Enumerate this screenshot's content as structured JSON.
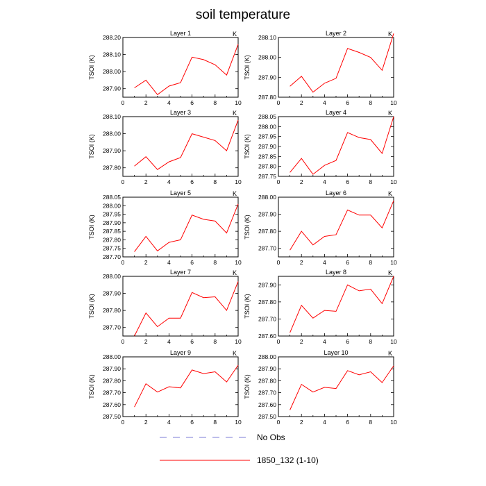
{
  "figure": {
    "title": "soil temperature"
  },
  "legend": [
    {
      "label": "No Obs",
      "color": "#7b7bd6",
      "dash": "dashed"
    },
    {
      "label": "1850_132 (1-10)",
      "color": "#ff0000",
      "dash": "solid"
    }
  ],
  "chart_data": [
    {
      "type": "line",
      "title": "Layer 1",
      "unit": "K",
      "ylabel": "TSOI  (K)",
      "xlim": [
        0,
        10
      ],
      "xticks": [
        0,
        2,
        4,
        6,
        8,
        10
      ],
      "ylim": [
        287.85,
        288.2
      ],
      "yticks": [
        "287.90",
        "288.00",
        "288.10",
        "288.20"
      ],
      "x": [
        1,
        2,
        3,
        4,
        5,
        6,
        7,
        8,
        9,
        10
      ],
      "series": [
        {
          "color": "#ff0000",
          "values": [
            287.905,
            287.95,
            287.865,
            287.915,
            287.935,
            288.085,
            288.07,
            288.04,
            287.98,
            288.16
          ]
        }
      ]
    },
    {
      "type": "line",
      "title": "Layer 2",
      "unit": "K",
      "ylabel": "TSOI  (K)",
      "xlim": [
        0,
        10
      ],
      "xticks": [
        0,
        2,
        4,
        6,
        8,
        10
      ],
      "ylim": [
        287.8,
        288.1
      ],
      "yticks": [
        "287.80",
        "287.90",
        "288.00",
        "288.10"
      ],
      "x": [
        1,
        2,
        3,
        4,
        5,
        6,
        7,
        8,
        9,
        10
      ],
      "series": [
        {
          "color": "#ff0000",
          "values": [
            287.855,
            287.905,
            287.825,
            287.87,
            287.895,
            288.045,
            288.025,
            288.0,
            287.935,
            288.12
          ]
        }
      ]
    },
    {
      "type": "line",
      "title": "Layer 3",
      "unit": "K",
      "ylabel": "TSOI  (K)",
      "xlim": [
        0,
        10
      ],
      "xticks": [
        0,
        2,
        4,
        6,
        8,
        10
      ],
      "ylim": [
        287.75,
        288.1
      ],
      "yticks": [
        "287.80",
        "287.90",
        "288.00",
        "288.10"
      ],
      "x": [
        1,
        2,
        3,
        4,
        5,
        6,
        7,
        8,
        9,
        10
      ],
      "series": [
        {
          "color": "#ff0000",
          "values": [
            287.81,
            287.865,
            287.79,
            287.835,
            287.86,
            288.0,
            287.98,
            287.96,
            287.9,
            288.08
          ]
        }
      ]
    },
    {
      "type": "line",
      "title": "Layer 4",
      "unit": "K",
      "ylabel": "TSOI  (K)",
      "xlim": [
        0,
        10
      ],
      "xticks": [
        0,
        2,
        4,
        6,
        8,
        10
      ],
      "ylim": [
        287.75,
        288.05
      ],
      "yticks": [
        "287.75",
        "287.80",
        "287.85",
        "287.90",
        "287.95",
        "288.00",
        "288.05"
      ],
      "x": [
        1,
        2,
        3,
        4,
        5,
        6,
        7,
        8,
        9,
        10
      ],
      "series": [
        {
          "color": "#ff0000",
          "values": [
            287.77,
            287.84,
            287.76,
            287.805,
            287.83,
            287.97,
            287.945,
            287.935,
            287.865,
            288.05
          ]
        }
      ]
    },
    {
      "type": "line",
      "title": "Layer 5",
      "unit": "K",
      "ylabel": "TSOI  (K)",
      "xlim": [
        0,
        10
      ],
      "xticks": [
        0,
        2,
        4,
        6,
        8,
        10
      ],
      "ylim": [
        287.7,
        288.05
      ],
      "yticks": [
        "287.70",
        "287.75",
        "287.80",
        "287.85",
        "287.90",
        "287.95",
        "288.00",
        "288.05"
      ],
      "x": [
        1,
        2,
        3,
        4,
        5,
        6,
        7,
        8,
        9,
        10
      ],
      "series": [
        {
          "color": "#ff0000",
          "values": [
            287.73,
            287.82,
            287.735,
            287.785,
            287.8,
            287.945,
            287.92,
            287.91,
            287.84,
            288.01
          ]
        }
      ]
    },
    {
      "type": "line",
      "title": "Layer 6",
      "unit": "K",
      "ylabel": "TSOI  (K)",
      "xlim": [
        0,
        10
      ],
      "xticks": [
        0,
        2,
        4,
        6,
        8,
        10
      ],
      "ylim": [
        287.65,
        288.0
      ],
      "yticks": [
        "287.70",
        "287.80",
        "287.90",
        "288.00"
      ],
      "x": [
        1,
        2,
        3,
        4,
        5,
        6,
        7,
        8,
        9,
        10
      ],
      "series": [
        {
          "color": "#ff0000",
          "values": [
            287.69,
            287.8,
            287.72,
            287.77,
            287.78,
            287.925,
            287.895,
            287.895,
            287.82,
            287.98
          ]
        }
      ]
    },
    {
      "type": "line",
      "title": "Layer 7",
      "unit": "K",
      "ylabel": "TSOI  (K)",
      "xlim": [
        0,
        10
      ],
      "xticks": [
        0,
        2,
        4,
        6,
        8,
        10
      ],
      "ylim": [
        287.65,
        288.0
      ],
      "yticks": [
        "287.70",
        "287.80",
        "287.90",
        "288.00"
      ],
      "x": [
        1,
        2,
        3,
        4,
        5,
        6,
        7,
        8,
        9,
        10
      ],
      "series": [
        {
          "color": "#ff0000",
          "values": [
            287.65,
            287.785,
            287.705,
            287.755,
            287.755,
            287.905,
            287.875,
            287.88,
            287.8,
            287.97
          ]
        }
      ]
    },
    {
      "type": "line",
      "title": "Layer 8",
      "unit": "K",
      "ylabel": "TSOI  (K)",
      "xlim": [
        0,
        10
      ],
      "xticks": [
        0,
        2,
        4,
        6,
        8,
        10
      ],
      "ylim": [
        287.6,
        287.95
      ],
      "yticks": [
        "287.60",
        "287.70",
        "287.80",
        "287.90"
      ],
      "x": [
        1,
        2,
        3,
        4,
        5,
        6,
        7,
        8,
        9,
        10
      ],
      "series": [
        {
          "color": "#ff0000",
          "values": [
            287.62,
            287.78,
            287.705,
            287.75,
            287.745,
            287.9,
            287.865,
            287.875,
            287.79,
            287.95
          ]
        }
      ]
    },
    {
      "type": "line",
      "title": "Layer 9",
      "unit": "K",
      "ylabel": "TSOI  (K)",
      "xlim": [
        0,
        10
      ],
      "xticks": [
        0,
        2,
        4,
        6,
        8,
        10
      ],
      "ylim": [
        287.5,
        288.0
      ],
      "yticks": [
        "287.50",
        "287.60",
        "287.70",
        "287.80",
        "287.90",
        "288.00"
      ],
      "x": [
        1,
        2,
        3,
        4,
        5,
        6,
        7,
        8,
        9,
        10
      ],
      "series": [
        {
          "color": "#ff0000",
          "values": [
            287.58,
            287.775,
            287.705,
            287.75,
            287.74,
            287.89,
            287.86,
            287.875,
            287.79,
            287.93
          ]
        }
      ]
    },
    {
      "type": "line",
      "title": "Layer 10",
      "unit": "K",
      "ylabel": "TSOI  (K)",
      "xlim": [
        0,
        10
      ],
      "xticks": [
        0,
        2,
        4,
        6,
        8,
        10
      ],
      "ylim": [
        287.5,
        288.0
      ],
      "yticks": [
        "287.50",
        "287.60",
        "287.70",
        "287.80",
        "287.90",
        "288.00"
      ],
      "x": [
        1,
        2,
        3,
        4,
        5,
        6,
        7,
        8,
        9,
        10
      ],
      "series": [
        {
          "color": "#ff0000",
          "values": [
            287.555,
            287.77,
            287.705,
            287.745,
            287.735,
            287.885,
            287.85,
            287.875,
            287.785,
            287.925
          ]
        }
      ]
    }
  ]
}
